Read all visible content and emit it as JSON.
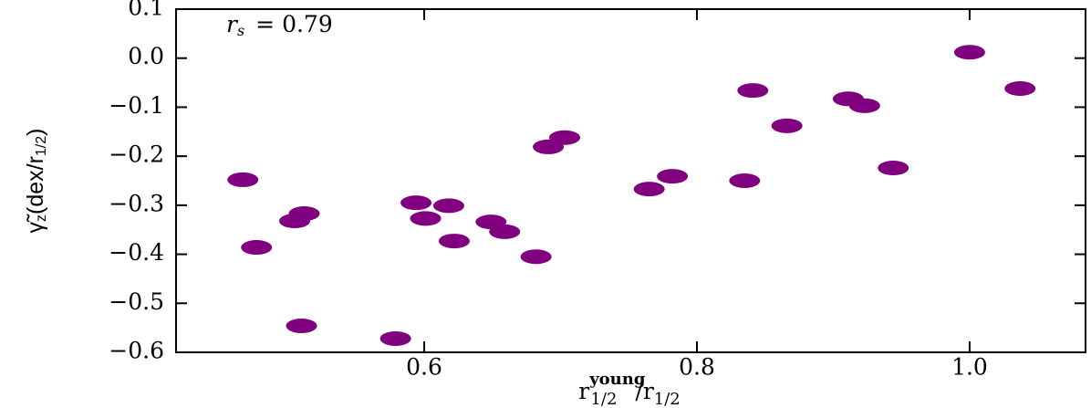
{
  "chart_data": {
    "type": "scatter",
    "color": "#800080",
    "annotation": {
      "symbol": "r",
      "subscript": "s",
      "text": "= 0.79"
    },
    "ylabel": {
      "main": "γ̃",
      "sub": "z",
      "rest": "(dex/r",
      "sub2": "1/2",
      "end": ")"
    },
    "xlabel": {
      "main": "r",
      "sub": "1/2",
      "sup": "young",
      "rest": "/r",
      "sub2": "1/2"
    },
    "x": [
      0.467,
      0.477,
      0.505,
      0.512,
      0.51,
      0.579,
      0.594,
      0.601,
      0.618,
      0.622,
      0.649,
      0.659,
      0.682,
      0.691,
      0.703,
      0.765,
      0.782,
      0.835,
      0.841,
      0.866,
      0.911,
      0.923,
      0.944,
      1.0,
      1.037
    ],
    "values": [
      -0.248,
      -0.386,
      -0.332,
      -0.317,
      -0.546,
      -0.572,
      -0.295,
      -0.327,
      -0.301,
      -0.373,
      -0.334,
      -0.354,
      -0.405,
      -0.181,
      -0.162,
      -0.267,
      -0.241,
      -0.25,
      -0.066,
      -0.138,
      -0.083,
      -0.097,
      -0.224,
      0.012,
      -0.062
    ],
    "xlim": [
      0.418,
      1.085
    ],
    "ylim": [
      -0.6,
      0.1
    ],
    "xticks": [
      0.6,
      0.8,
      {
        "value": 1.0,
        "label": "1.0"
      }
    ],
    "yticks": [
      0.1,
      {
        "value": 0.0,
        "label": "0.0"
      },
      {
        "value": -0.1,
        "label": "−0.1"
      },
      {
        "value": -0.2,
        "label": "−0.2"
      },
      {
        "value": -0.3,
        "label": "−0.3"
      },
      {
        "value": -0.4,
        "label": "−0.4"
      },
      {
        "value": -0.5,
        "label": "−0.5"
      },
      {
        "value": -0.6,
        "label": "−0.6"
      }
    ]
  }
}
